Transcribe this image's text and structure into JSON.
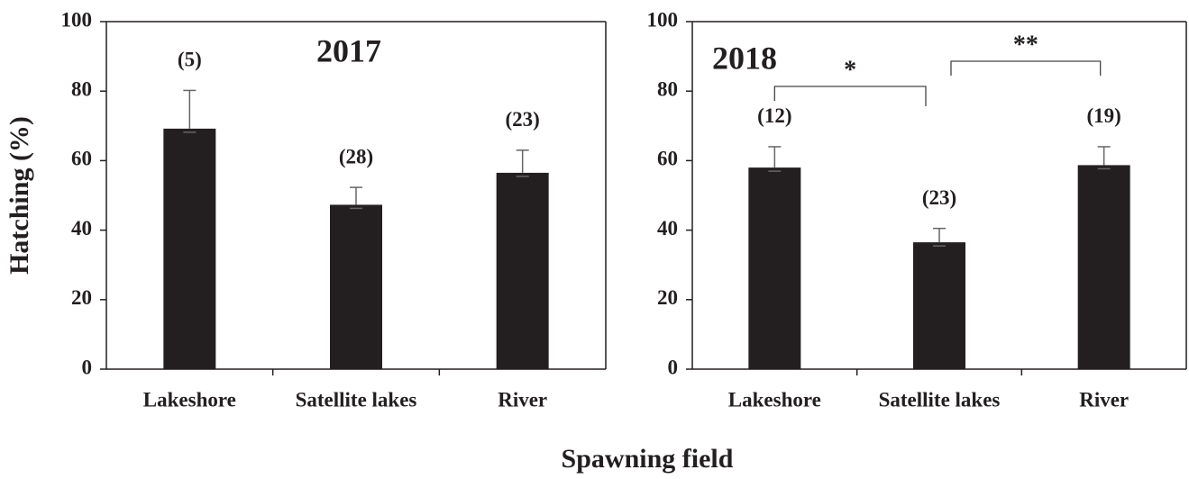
{
  "y_label": "Hatching (%)",
  "x_label": "Spawning field",
  "chart_data": [
    {
      "type": "bar",
      "title": "2017",
      "categories": [
        "Lakeshore",
        "Satellite lakes",
        "River"
      ],
      "values": [
        69.2,
        47.3,
        56.5
      ],
      "errors": [
        11,
        5,
        6.5
      ],
      "sample_sizes": [
        "(5)",
        "(28)",
        "(23)"
      ],
      "color": "#231f20",
      "ylim": [
        0,
        100
      ],
      "yticks": [
        0,
        20,
        40,
        60,
        80,
        100
      ],
      "significance": []
    },
    {
      "type": "bar",
      "title": "2018",
      "categories": [
        "Lakeshore",
        "Satellite lakes",
        "River"
      ],
      "values": [
        58,
        36.5,
        58.7
      ],
      "errors": [
        6,
        4,
        5.3
      ],
      "sample_sizes": [
        "(12)",
        "(23)",
        "(19)"
      ],
      "color": "#231f20",
      "ylim": [
        0,
        100
      ],
      "yticks": [
        0,
        20,
        40,
        60,
        80,
        100
      ],
      "significance": [
        {
          "label": "*",
          "from": 0,
          "to": 1
        },
        {
          "label": "**",
          "from": 1,
          "to": 2
        }
      ]
    }
  ]
}
